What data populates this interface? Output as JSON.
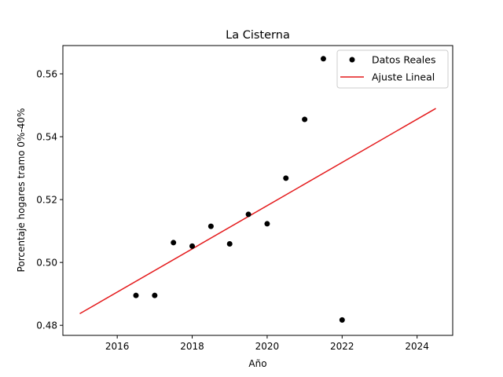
{
  "chart_data": {
    "type": "scatter",
    "title": "La Cisterna",
    "xlabel": "Año",
    "ylabel": "Porcentaje hogares tramo 0%-40%",
    "xlim": [
      2014.55,
      2024.95
    ],
    "ylim": [
      0.4768,
      0.569
    ],
    "xticks": [
      2016,
      2018,
      2020,
      2022,
      2024
    ],
    "yticks": [
      0.48,
      0.5,
      0.52,
      0.54,
      0.56
    ],
    "xtick_labels": [
      "2016",
      "2018",
      "2020",
      "2022",
      "2024"
    ],
    "ytick_labels": [
      "0.48",
      "0.50",
      "0.52",
      "0.54",
      "0.56"
    ],
    "grid": false,
    "legend_position": "top-right",
    "series": [
      {
        "name": "Datos Reales",
        "kind": "scatter",
        "color": "#000000",
        "x": [
          2016.5,
          2017.0,
          2017.5,
          2018.0,
          2018.5,
          2019.0,
          2019.5,
          2020.0,
          2020.5,
          2021.0,
          2021.5,
          2022.0
        ],
        "y": [
          0.4895,
          0.4895,
          0.5063,
          0.5052,
          0.5115,
          0.5059,
          0.5153,
          0.5123,
          0.5268,
          0.5455,
          0.5648,
          0.4817
        ]
      },
      {
        "name": "Ajuste Lineal",
        "kind": "line",
        "color": "#e41a1c",
        "x": [
          2015.0,
          2024.5
        ],
        "y": [
          0.4837,
          0.549
        ]
      }
    ]
  }
}
